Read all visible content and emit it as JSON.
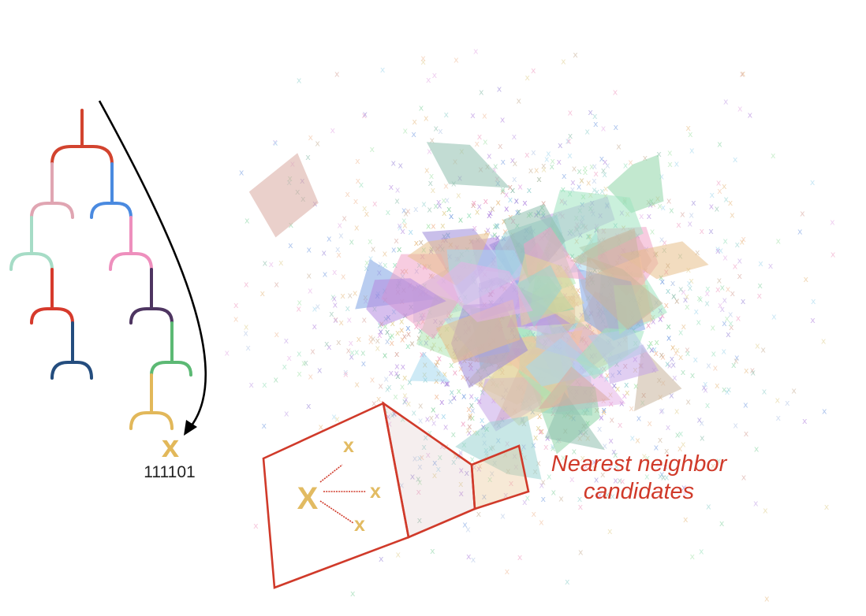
{
  "tree": {
    "leaf_symbol": "x",
    "leaf_code": "111101",
    "colors": {
      "root": "#d2432e",
      "pink_light": "#e0a5b2",
      "blue": "#4a8ae0",
      "mint": "#a6dcc6",
      "pink": "#ee8fbd",
      "red": "#d63a2c",
      "purple": "#4e3561",
      "navy": "#244d7e",
      "green": "#5cb974",
      "gold": "#e2b85a"
    }
  },
  "point_cloud": {
    "marker": "x",
    "palette": [
      "#b58be0",
      "#9c8ad9",
      "#7fa4e3",
      "#8fd6a8",
      "#f0a3c6",
      "#e8c08a",
      "#a6d8ef",
      "#c7a6e8",
      "#9fe3c0",
      "#e3d39b",
      "#d9a9a0",
      "#b7c9e8",
      "#9ad3d1",
      "#e6b2e8",
      "#aee6b3",
      "#c9b49d",
      "#8fbfae",
      "#f2c1a1"
    ]
  },
  "zoom": {
    "query_symbol": "X",
    "candidate_symbols": [
      "x",
      "x",
      "x"
    ],
    "outline_color": "#d03a2a",
    "symbol_color": "#e2bb62"
  },
  "label": {
    "line1": "Nearest neighbor",
    "line2": "candidates"
  }
}
